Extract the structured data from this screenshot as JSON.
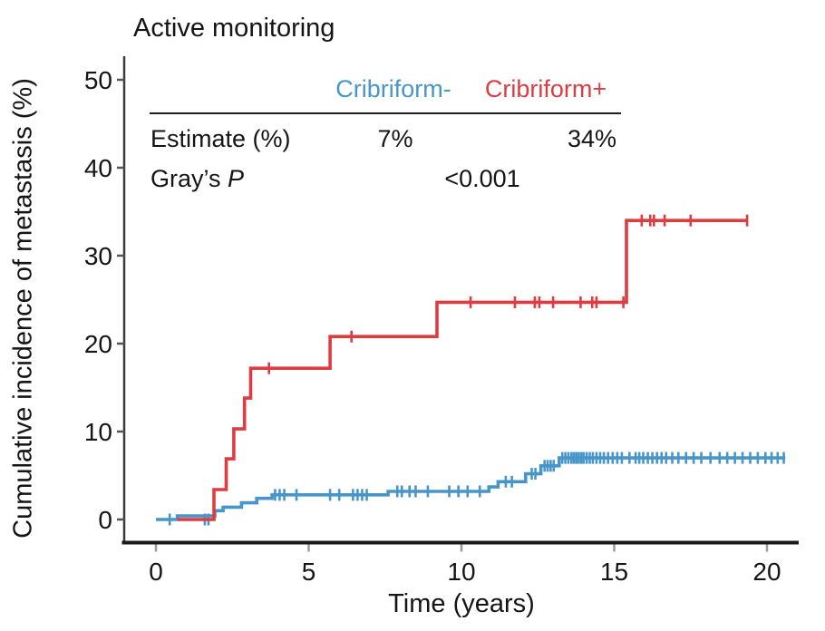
{
  "page": {
    "background": "#ffffff"
  },
  "inset": {
    "col1_header": "Cribriform-",
    "col2_header": "Cribriform+",
    "row1_label": "Estimate (%)",
    "row1_col1": "7%",
    "row1_col2": "34%",
    "row2_label": "Gray’s",
    "row2_label_italic": "P",
    "row2_value": "<0.001"
  },
  "chart_data": {
    "type": "line",
    "variant": "step_cumulative_incidence",
    "title": "Active monitoring",
    "xlabel": "Time (years)",
    "ylabel": "Cumulative incidence of metastasis (%)",
    "xlim": [
      0,
      21
    ],
    "ylim": [
      0,
      52
    ],
    "x_ticks": [
      0,
      5,
      10,
      15,
      20
    ],
    "y_ticks": [
      0,
      10,
      20,
      30,
      40,
      50
    ],
    "grid": false,
    "legend_position": "inset-table",
    "axis_color": "#1a1a1a",
    "series": [
      {
        "name": "Cribriform-",
        "color": "#4896c9",
        "estimate_pct": "7%",
        "steps": [
          [
            0,
            0
          ],
          [
            0.7,
            0.4
          ],
          [
            1.93,
            1.0
          ],
          [
            2.2,
            1.4
          ],
          [
            2.8,
            1.9
          ],
          [
            3.3,
            2.4
          ],
          [
            3.8,
            2.8
          ],
          [
            7.6,
            3.2
          ],
          [
            10.9,
            3.7
          ],
          [
            11.2,
            4.3
          ],
          [
            12.1,
            5.2
          ],
          [
            12.6,
            6.1
          ],
          [
            13.2,
            7.0
          ],
          [
            20.6,
            7.0
          ]
        ],
        "censors": [
          [
            0.45,
            0
          ],
          [
            1.6,
            0
          ],
          [
            1.72,
            0
          ],
          [
            3.9,
            2.8
          ],
          [
            4.05,
            2.8
          ],
          [
            4.2,
            2.8
          ],
          [
            4.6,
            2.8
          ],
          [
            5.7,
            2.8
          ],
          [
            6.0,
            2.8
          ],
          [
            6.45,
            2.8
          ],
          [
            6.6,
            2.8
          ],
          [
            6.75,
            2.8
          ],
          [
            6.9,
            2.8
          ],
          [
            7.9,
            3.2
          ],
          [
            8.05,
            3.2
          ],
          [
            8.3,
            3.2
          ],
          [
            8.5,
            3.2
          ],
          [
            8.9,
            3.2
          ],
          [
            9.6,
            3.2
          ],
          [
            9.9,
            3.2
          ],
          [
            10.2,
            3.2
          ],
          [
            10.6,
            3.2
          ],
          [
            11.45,
            4.3
          ],
          [
            11.65,
            4.3
          ],
          [
            12.3,
            5.2
          ],
          [
            12.42,
            5.2
          ],
          [
            12.72,
            6.1
          ],
          [
            12.82,
            6.1
          ],
          [
            12.92,
            6.1
          ],
          [
            13.02,
            6.1
          ],
          [
            13.3,
            7.0
          ],
          [
            13.4,
            7.0
          ],
          [
            13.5,
            7.0
          ],
          [
            13.6,
            7.0
          ],
          [
            13.68,
            7.0
          ],
          [
            13.76,
            7.0
          ],
          [
            13.84,
            7.0
          ],
          [
            13.92,
            7.0
          ],
          [
            14.0,
            7.0
          ],
          [
            14.1,
            7.0
          ],
          [
            14.2,
            7.0
          ],
          [
            14.3,
            7.0
          ],
          [
            14.42,
            7.0
          ],
          [
            14.54,
            7.0
          ],
          [
            14.66,
            7.0
          ],
          [
            14.8,
            7.0
          ],
          [
            14.95,
            7.0
          ],
          [
            15.1,
            7.0
          ],
          [
            15.25,
            7.0
          ],
          [
            15.5,
            7.0
          ],
          [
            15.7,
            7.0
          ],
          [
            15.82,
            7.0
          ],
          [
            15.95,
            7.0
          ],
          [
            16.1,
            7.0
          ],
          [
            16.25,
            7.0
          ],
          [
            16.4,
            7.0
          ],
          [
            16.55,
            7.0
          ],
          [
            16.7,
            7.0
          ],
          [
            16.9,
            7.0
          ],
          [
            17.1,
            7.0
          ],
          [
            17.35,
            7.0
          ],
          [
            17.6,
            7.0
          ],
          [
            17.85,
            7.0
          ],
          [
            18.15,
            7.0
          ],
          [
            18.45,
            7.0
          ],
          [
            18.7,
            7.0
          ],
          [
            18.95,
            7.0
          ],
          [
            19.2,
            7.0
          ],
          [
            19.45,
            7.0
          ],
          [
            19.7,
            7.0
          ],
          [
            19.95,
            7.0
          ],
          [
            20.15,
            7.0
          ],
          [
            20.35,
            7.0
          ],
          [
            20.55,
            7.0
          ]
        ]
      },
      {
        "name": "Cribriform+",
        "color": "#dd3c41",
        "estimate_pct": "34%",
        "steps": [
          [
            0.7,
            0
          ],
          [
            1.9,
            3.4
          ],
          [
            2.3,
            6.9
          ],
          [
            2.55,
            10.3
          ],
          [
            2.9,
            13.8
          ],
          [
            3.1,
            17.2
          ],
          [
            5.7,
            20.8
          ],
          [
            9.2,
            24.7
          ],
          [
            15.4,
            34
          ],
          [
            19.35,
            34
          ]
        ],
        "censors": [
          [
            3.7,
            17.2
          ],
          [
            6.4,
            20.8
          ],
          [
            10.3,
            24.7
          ],
          [
            11.75,
            24.7
          ],
          [
            12.4,
            24.7
          ],
          [
            12.55,
            24.7
          ],
          [
            13.0,
            24.7
          ],
          [
            13.9,
            24.7
          ],
          [
            14.28,
            24.7
          ],
          [
            14.42,
            24.7
          ],
          [
            15.3,
            24.7
          ],
          [
            15.9,
            34
          ],
          [
            16.18,
            34
          ],
          [
            16.3,
            34
          ],
          [
            16.65,
            34
          ],
          [
            17.5,
            34
          ],
          [
            19.35,
            34
          ]
        ]
      }
    ],
    "stats": {
      "grays_p": "<0.001",
      "estimates": {
        "Cribriform-": "7%",
        "Cribriform+": "34%"
      }
    }
  }
}
